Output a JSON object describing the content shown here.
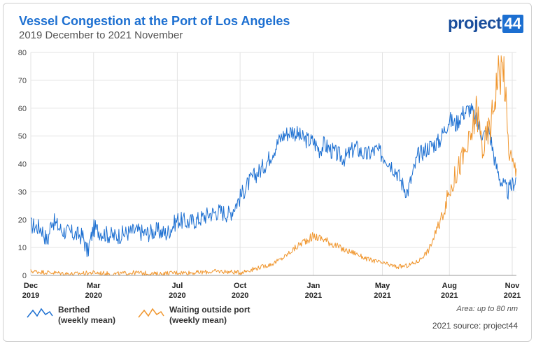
{
  "header": {
    "title": "Vessel Congestion at the Port of Los Angeles",
    "subtitle": "2019 December to 2021 November"
  },
  "logo": {
    "word": "project",
    "number": "44"
  },
  "notes": {
    "area": "Area: up to 80 nm",
    "source": "2021 source: project44"
  },
  "legend": [
    {
      "line1": "Berthed",
      "line2": "(weekly mean)",
      "color": "#1c6fd1"
    },
    {
      "line1": "Waiting outside port",
      "line2": "(weekly mean)",
      "color": "#f0962e"
    }
  ],
  "chart_data": {
    "type": "line",
    "title": "Vessel Congestion at the Port of Los Angeles",
    "subtitle": "2019 December to 2021 November",
    "x_domain_months": [
      0,
      23.2
    ],
    "ylim": [
      0,
      80
    ],
    "y_ticks": [
      0,
      10,
      20,
      30,
      40,
      50,
      60,
      70,
      80
    ],
    "x_ticks": [
      {
        "month": 0,
        "line1": "Dec",
        "line2": "2019"
      },
      {
        "month": 3,
        "line1": "Mar",
        "line2": "2020"
      },
      {
        "month": 7,
        "line1": "Jul",
        "line2": "2020"
      },
      {
        "month": 10,
        "line1": "Oct",
        "line2": "2020"
      },
      {
        "month": 13.5,
        "line1": "Jan",
        "line2": "2021"
      },
      {
        "month": 16.8,
        "line1": "May",
        "line2": "2021"
      },
      {
        "month": 20,
        "line1": "Aug",
        "line2": "2021"
      },
      {
        "month": 23,
        "line1": "Nov",
        "line2": "2021"
      }
    ],
    "grid": true,
    "legend_position": "bottom-left",
    "series": [
      {
        "name": "Berthed (weekly mean)",
        "color": "#1c6fd1",
        "x": [
          0,
          0.5,
          0.8,
          1,
          1.5,
          2,
          2.5,
          2.7,
          3,
          3.5,
          4,
          4.5,
          5,
          5.5,
          6,
          6.5,
          7,
          7.5,
          8,
          8.5,
          9,
          9.5,
          10,
          10.3,
          10.6,
          11,
          11.3,
          11.6,
          12,
          12.5,
          13,
          13.5,
          13.8,
          14,
          14.5,
          15,
          15.5,
          16,
          16.5,
          17,
          17.5,
          17.8,
          18,
          18.5,
          19,
          19.5,
          20,
          20.3,
          20.6,
          21,
          21.3,
          21.6,
          21.9,
          22.2,
          22.5,
          22.8,
          23.2
        ],
        "values": [
          18,
          17,
          12,
          20,
          16,
          15,
          14,
          8,
          17,
          15,
          14,
          15,
          16,
          15,
          16,
          15,
          20,
          19,
          20,
          22,
          23,
          22,
          28,
          32,
          35,
          38,
          41,
          45,
          50,
          52,
          49,
          48,
          45,
          47,
          44,
          42,
          46,
          43,
          45,
          42,
          37,
          32,
          30,
          43,
          46,
          48,
          56,
          54,
          58,
          60,
          55,
          50,
          52,
          40,
          33,
          30,
          35
        ]
      },
      {
        "name": "Waiting outside port (weekly mean)",
        "color": "#f0962e",
        "x": [
          0,
          1,
          2,
          3,
          4,
          5,
          6,
          7,
          8,
          9,
          10,
          10.5,
          11,
          11.5,
          12,
          12.5,
          13,
          13.5,
          14,
          14.5,
          15,
          15.5,
          16,
          16.5,
          17,
          17.5,
          18,
          18.5,
          19,
          19.5,
          20,
          20.5,
          21,
          21.3,
          21.6,
          22,
          22.3,
          22.6,
          22.8,
          23,
          23.2
        ],
        "values": [
          1.5,
          1,
          0.5,
          1,
          0.5,
          1,
          0.5,
          1,
          1,
          1.5,
          1,
          2,
          3,
          4,
          6,
          9,
          12,
          14,
          13,
          11,
          9,
          8,
          6,
          5,
          4,
          3,
          3.5,
          5,
          9,
          18,
          30,
          40,
          48,
          60,
          45,
          55,
          72,
          75,
          48,
          40,
          37
        ]
      }
    ]
  }
}
